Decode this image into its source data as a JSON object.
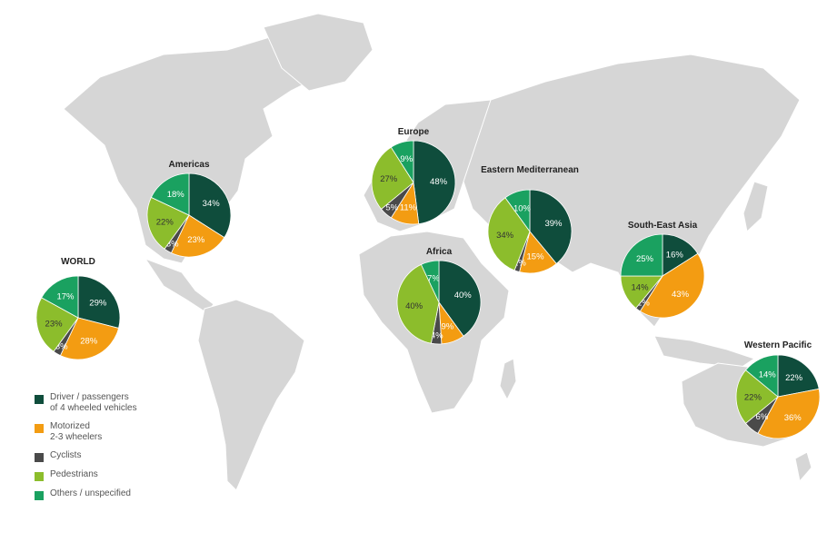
{
  "chart_data": {
    "type": "pie",
    "title": "",
    "categories": [
      "Driver / passengers\nof 4 wheeled vehicles",
      "Motorized\n2-3 wheelers",
      "Cyclists",
      "Pedestrians",
      "Others / unspecified"
    ],
    "colors": [
      "#0f4d3c",
      "#f39c12",
      "#4a4a4a",
      "#8cbd2c",
      "#1aa160"
    ],
    "label_colors": [
      "#ffffff",
      "#ffffff",
      "#ffffff",
      "#333333",
      "#ffffff"
    ],
    "pies": [
      {
        "name": "WORLD",
        "values": [
          29,
          28,
          3,
          23,
          17
        ]
      },
      {
        "name": "Americas",
        "values": [
          34,
          23,
          3,
          22,
          18
        ]
      },
      {
        "name": "Europe",
        "values": [
          48,
          11,
          5,
          27,
          9
        ]
      },
      {
        "name": "Africa",
        "values": [
          40,
          9,
          4,
          40,
          7
        ]
      },
      {
        "name": "Eastern Mediterranean",
        "values": [
          39,
          15,
          2,
          34,
          10
        ]
      },
      {
        "name": "South-East Asia",
        "values": [
          16,
          43,
          2,
          14,
          25
        ]
      },
      {
        "name": "Western Pacific",
        "values": [
          22,
          36,
          6,
          22,
          14
        ]
      }
    ],
    "legend_position": "bottom-left",
    "background": "world map"
  }
}
